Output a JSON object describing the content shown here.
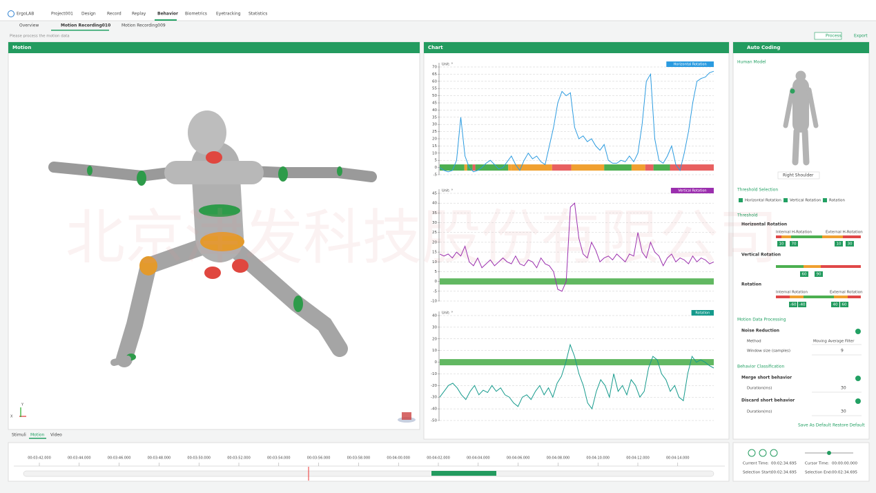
{
  "app": {
    "name": "ErgoLAB",
    "nav": [
      "Project001",
      "Design",
      "Record",
      "Replay",
      "Behavior",
      "Biometrics",
      "Eyetracking",
      "Statistics"
    ]
  },
  "tabs": [
    "Overview",
    "Motion Recording010",
    "Motion Recording009"
  ],
  "hint": "Please process the motion data",
  "actions": [
    "Process",
    "Export"
  ],
  "motion": {
    "title": "Motion",
    "axis_x": "X",
    "axis_y": "Y",
    "tabs": [
      "Stimuli",
      "Motion",
      "Video"
    ]
  },
  "chart_panel": {
    "title": "Chart"
  },
  "chart_data": [
    {
      "type": "line",
      "unit": "Unit: °",
      "series": [
        {
          "name": "Horizontal Rotation",
          "color": "#2b9be0",
          "values": [
            0,
            -2,
            -3,
            -2,
            5,
            35,
            8,
            0,
            -3,
            -2,
            0,
            3,
            5,
            2,
            -1,
            0,
            4,
            8,
            2,
            -2,
            5,
            10,
            6,
            8,
            4,
            2,
            15,
            28,
            45,
            53,
            50,
            52,
            28,
            20,
            22,
            18,
            20,
            15,
            12,
            16,
            5,
            3,
            3,
            5,
            4,
            8,
            4,
            10,
            30,
            60,
            65,
            20,
            5,
            3,
            8,
            15,
            2,
            -2,
            10,
            25,
            45,
            60,
            62,
            63,
            66,
            67
          ]
        }
      ],
      "ylim": [
        -5,
        70
      ],
      "yticks": [
        -5,
        0,
        5,
        10,
        15,
        20,
        25,
        30,
        35,
        40,
        45,
        50,
        55,
        60,
        65,
        70
      ],
      "grid": true
    },
    {
      "type": "line",
      "unit": "Unit: °",
      "series": [
        {
          "name": "Vertical Rotation",
          "color": "#9b2fae",
          "values": [
            14,
            13,
            14,
            12,
            15,
            13,
            18,
            10,
            8,
            12,
            7,
            9,
            11,
            8,
            10,
            12,
            10,
            9,
            13,
            9,
            8,
            11,
            10,
            7,
            12,
            9,
            8,
            5,
            -4,
            -5,
            0,
            38,
            40,
            22,
            14,
            12,
            20,
            16,
            10,
            12,
            13,
            11,
            14,
            12,
            10,
            14,
            13,
            25,
            15,
            12,
            20,
            15,
            13,
            8,
            12,
            14,
            10,
            12,
            11,
            9,
            13,
            10,
            12,
            11,
            9,
            10
          ]
        }
      ],
      "ylim": [
        -10,
        45
      ],
      "yticks": [
        -10,
        -5,
        0,
        5,
        10,
        15,
        20,
        25,
        30,
        35,
        40,
        45
      ],
      "grid": true
    },
    {
      "type": "line",
      "unit": "Unit: °",
      "series": [
        {
          "name": "Rotation",
          "color": "#159a8c",
          "values": [
            -30,
            -25,
            -20,
            -18,
            -22,
            -28,
            -32,
            -25,
            -20,
            -28,
            -24,
            -26,
            -20,
            -25,
            -22,
            -28,
            -30,
            -35,
            -38,
            -30,
            -28,
            -32,
            -25,
            -20,
            -28,
            -22,
            -30,
            -18,
            -12,
            0,
            15,
            5,
            -10,
            -20,
            -35,
            -40,
            -25,
            -15,
            -20,
            -30,
            -10,
            -25,
            -20,
            -28,
            -15,
            -20,
            -30,
            -25,
            -5,
            5,
            2,
            -10,
            -15,
            -25,
            -20,
            -30,
            -33,
            -10,
            5,
            0,
            2,
            0,
            -3,
            -5
          ]
        }
      ],
      "ylim": [
        -50,
        40
      ],
      "yticks": [
        -50,
        -40,
        -30,
        -20,
        -10,
        0,
        10,
        20,
        30,
        40
      ],
      "grid": true
    }
  ],
  "auto_coding": {
    "title": "Auto Coding",
    "human_model": "Human Model",
    "joint": "Right Shoulder",
    "threshold_selection": "Threshold Selection",
    "checks": [
      "Horizontal Rotation",
      "Vertical Rotation",
      "Rotation"
    ],
    "threshold": "Threshold",
    "h_rotation": {
      "title": "Horizontal Rotation",
      "internal": "Internal H-Rotation",
      "external": "External H-Rotation",
      "values": [
        10,
        70,
        10,
        30
      ]
    },
    "v_rotation": {
      "title": "Vertical Rotation",
      "values": [
        60,
        90
      ]
    },
    "rotation": {
      "title": "Rotation",
      "internal": "Internal Rotation",
      "external": "External Rotation",
      "values": [
        -60,
        -40,
        40,
        60
      ]
    },
    "processing": "Motion Data Processing",
    "noise": "Noise Reduction",
    "method_label": "Method",
    "method": "Moving Average Filter",
    "window_label": "Window size (samples)",
    "window": 9,
    "classification": "Behavior Classification",
    "merge": "Merge short behavior",
    "merge_label": "Duration(ms)",
    "merge_value": 30,
    "discard": "Discard short behavior",
    "discard_label": "Duration(ms)",
    "discard_value": 30,
    "save": "Save As Default",
    "restore": "Restore Default"
  },
  "timeline": {
    "ticks": [
      "00:03:42.000",
      "00:03:44.000",
      "00:03:46.000",
      "00:03:48.000",
      "00:03:50.000",
      "00:03:52.000",
      "00:03:54.000",
      "00:03:56.000",
      "00:03:58.000",
      "00:04:00.000",
      "00:04:02.000",
      "00:04:04.000",
      "00:04:06.000",
      "00:04:08.000",
      "00:04:10.000",
      "00:04:12.000",
      "00:04:14.000"
    ]
  },
  "playback": {
    "current_label": "Current Time:",
    "current": "00:02:34.695",
    "cursor_label": "Cursor Time:",
    "cursor": "00:00:00.000",
    "start_label": "Selection Start:",
    "start": "00:02:34.695",
    "end_label": "Selection End:",
    "end": "00:02:34.695"
  },
  "watermark": "北京津发科技股份有限公司"
}
